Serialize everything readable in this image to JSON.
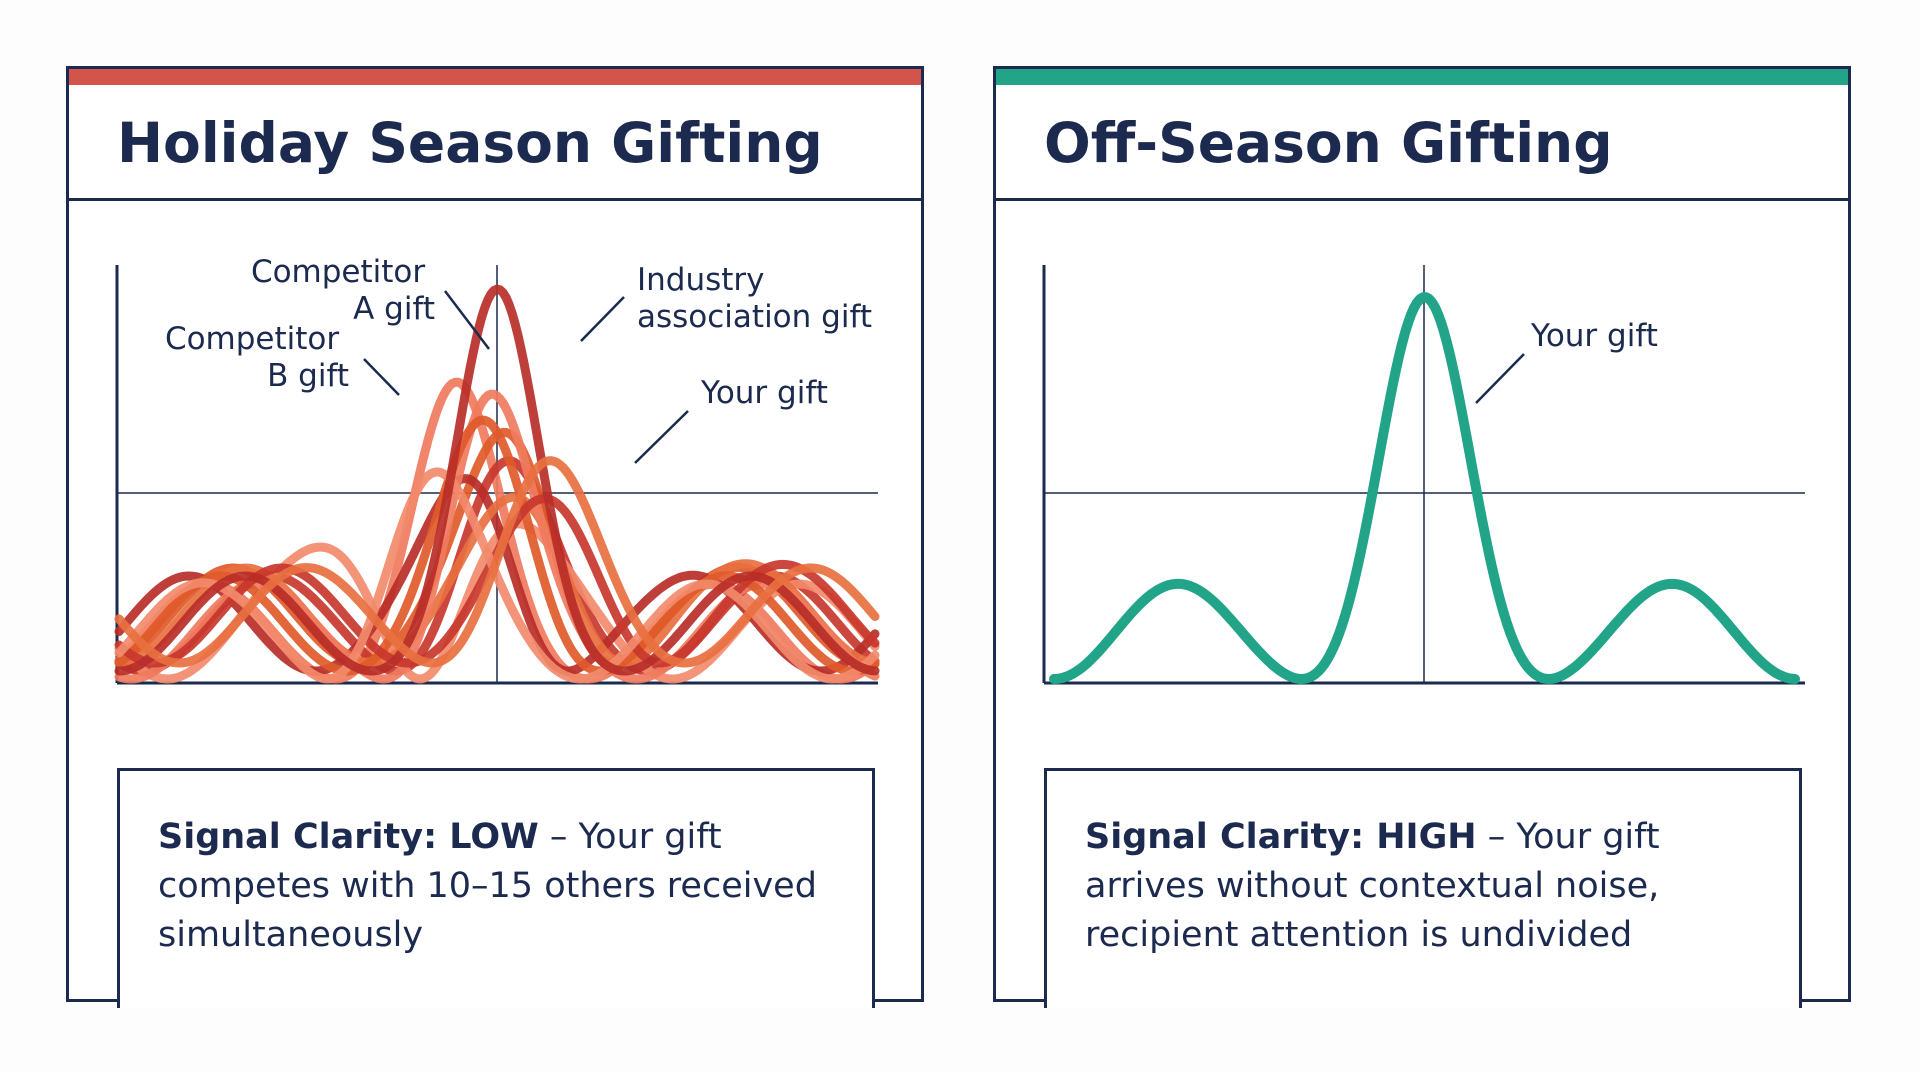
{
  "colors": {
    "navy": "#1b2a4e",
    "holiday_accent": "#d2544a",
    "offseason_accent": "#22a489",
    "noise_palette": [
      "#f07b5e",
      "#c8372d",
      "#e05a2a",
      "#f28a6b",
      "#b82e28",
      "#e87040"
    ]
  },
  "panels": [
    {
      "title": "Holiday Season Gifting",
      "labels": {
        "competitor_a": [
          "Competitor",
          "A gift"
        ],
        "competitor_b": [
          "Competitor",
          "B gift"
        ],
        "industry": [
          "Industry",
          "association gift"
        ],
        "your_gift": "Your gift"
      },
      "note": {
        "prefix": "Signal Clarity: LOW",
        "rest": " – Your gift competes with 10–15 others received simultaneously"
      }
    },
    {
      "title": "Off-Season Gifting",
      "labels": {
        "your_gift": "Your gift"
      },
      "note": {
        "prefix": "Signal Clarity: HIGH",
        "rest": " – Your gift arrives without contextual noise, recipient attention is undivided"
      }
    }
  ]
}
